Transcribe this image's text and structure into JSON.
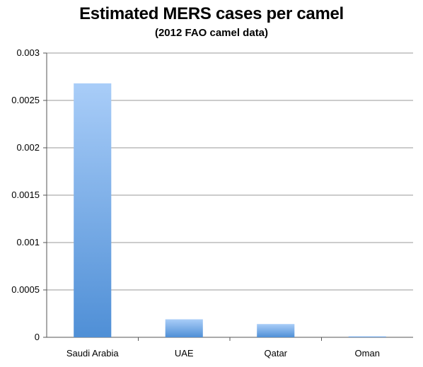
{
  "chart_data": {
    "type": "bar",
    "title": "Estimated MERS cases per camel",
    "subtitle": "(2012 FAO camel data)",
    "xlabel": "",
    "ylabel": "",
    "categories": [
      "Saudi Arabia",
      "UAE",
      "Qatar",
      "Oman"
    ],
    "values": [
      0.00268,
      0.00019,
      0.00014,
      1e-05
    ],
    "ylim": [
      0,
      0.003
    ],
    "yticks": [
      "0",
      "0.0005",
      "0.001",
      "0.0015",
      "0.002",
      "0.0025",
      "0.003"
    ],
    "grid": true,
    "legend": "none",
    "colors": {
      "bar_top": "#a9cdf8",
      "bar_bottom": "#4f8fd6",
      "grid": "#9a9a9a",
      "axis": "#555555"
    }
  }
}
